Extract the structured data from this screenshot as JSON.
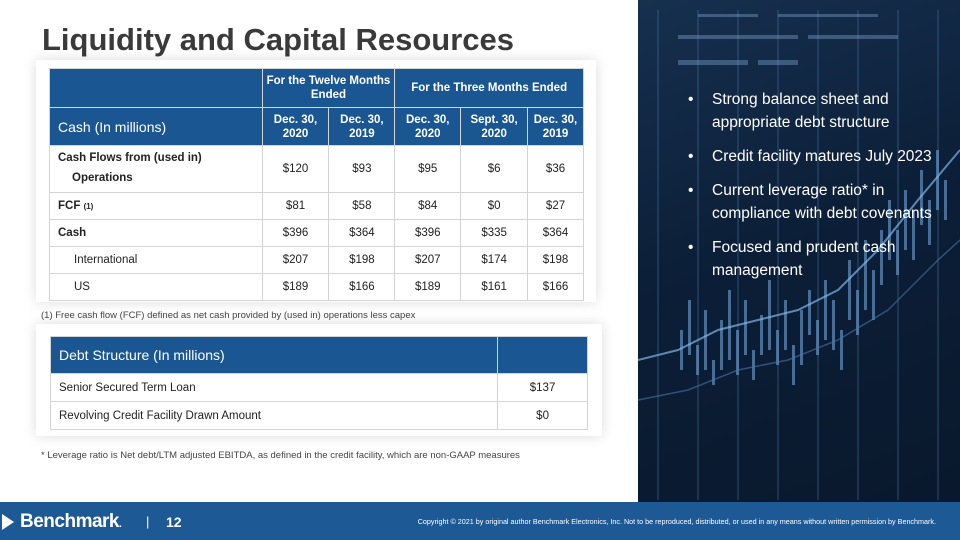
{
  "title": "Liquidity and Capital Resources",
  "cash_table": {
    "group_headers": [
      "For the Twelve Months Ended",
      "For the Three Months Ended"
    ],
    "row_header": "Cash (In millions)",
    "columns": [
      "Dec. 30, 2020",
      "Dec. 30, 2019",
      "Dec. 30, 2020",
      "Sept. 30, 2020",
      "Dec. 30, 2019"
    ],
    "rows": [
      {
        "label": "Cash Flows from (used in)",
        "label2": "Operations",
        "values": [
          "$120",
          "$93",
          "$95",
          "$6",
          "$36"
        ]
      },
      {
        "label": "FCF",
        "footnote": "(1)",
        "values": [
          "$81",
          "$58",
          "$84",
          "$0",
          "$27"
        ]
      },
      {
        "label": "Cash",
        "values": [
          "$396",
          "$364",
          "$396",
          "$335",
          "$364"
        ]
      },
      {
        "label": "International",
        "values": [
          "$207",
          "$198",
          "$207",
          "$174",
          "$198"
        ]
      },
      {
        "label": "US",
        "values": [
          "$189",
          "$166",
          "$189",
          "$161",
          "$166"
        ]
      }
    ]
  },
  "fcf_note": "(1) Free cash flow (FCF) defined as net cash provided by (used in) operations less capex",
  "debt_table": {
    "header": "Debt Structure (In millions)",
    "rows": [
      {
        "label": "Senior Secured Term Loan",
        "value": "$137"
      },
      {
        "label": "Revolving Credit Facility Drawn Amount",
        "value": "$0"
      }
    ]
  },
  "leverage_note": "* Leverage ratio is Net debt/LTM adjusted EBITDA, as defined in the credit facility, which are non-GAAP measures",
  "bullets": [
    "Strong balance sheet and appropriate debt structure",
    "Credit facility matures July 2023",
    "Current leverage ratio* in compliance with debt covenants",
    "Focused and prudent cash management"
  ],
  "footer": {
    "logo_text": "Benchmark",
    "separator": "|",
    "page_number": "12",
    "copyright": "Copyright © 2021 by original author Benchmark Electronics, Inc. Not to be reproduced, distributed, or used in any means without written permission by Benchmark."
  },
  "colors": {
    "accent": "#1a5691",
    "footer": "#1d5995",
    "photo_bg": "#0c1f38"
  }
}
